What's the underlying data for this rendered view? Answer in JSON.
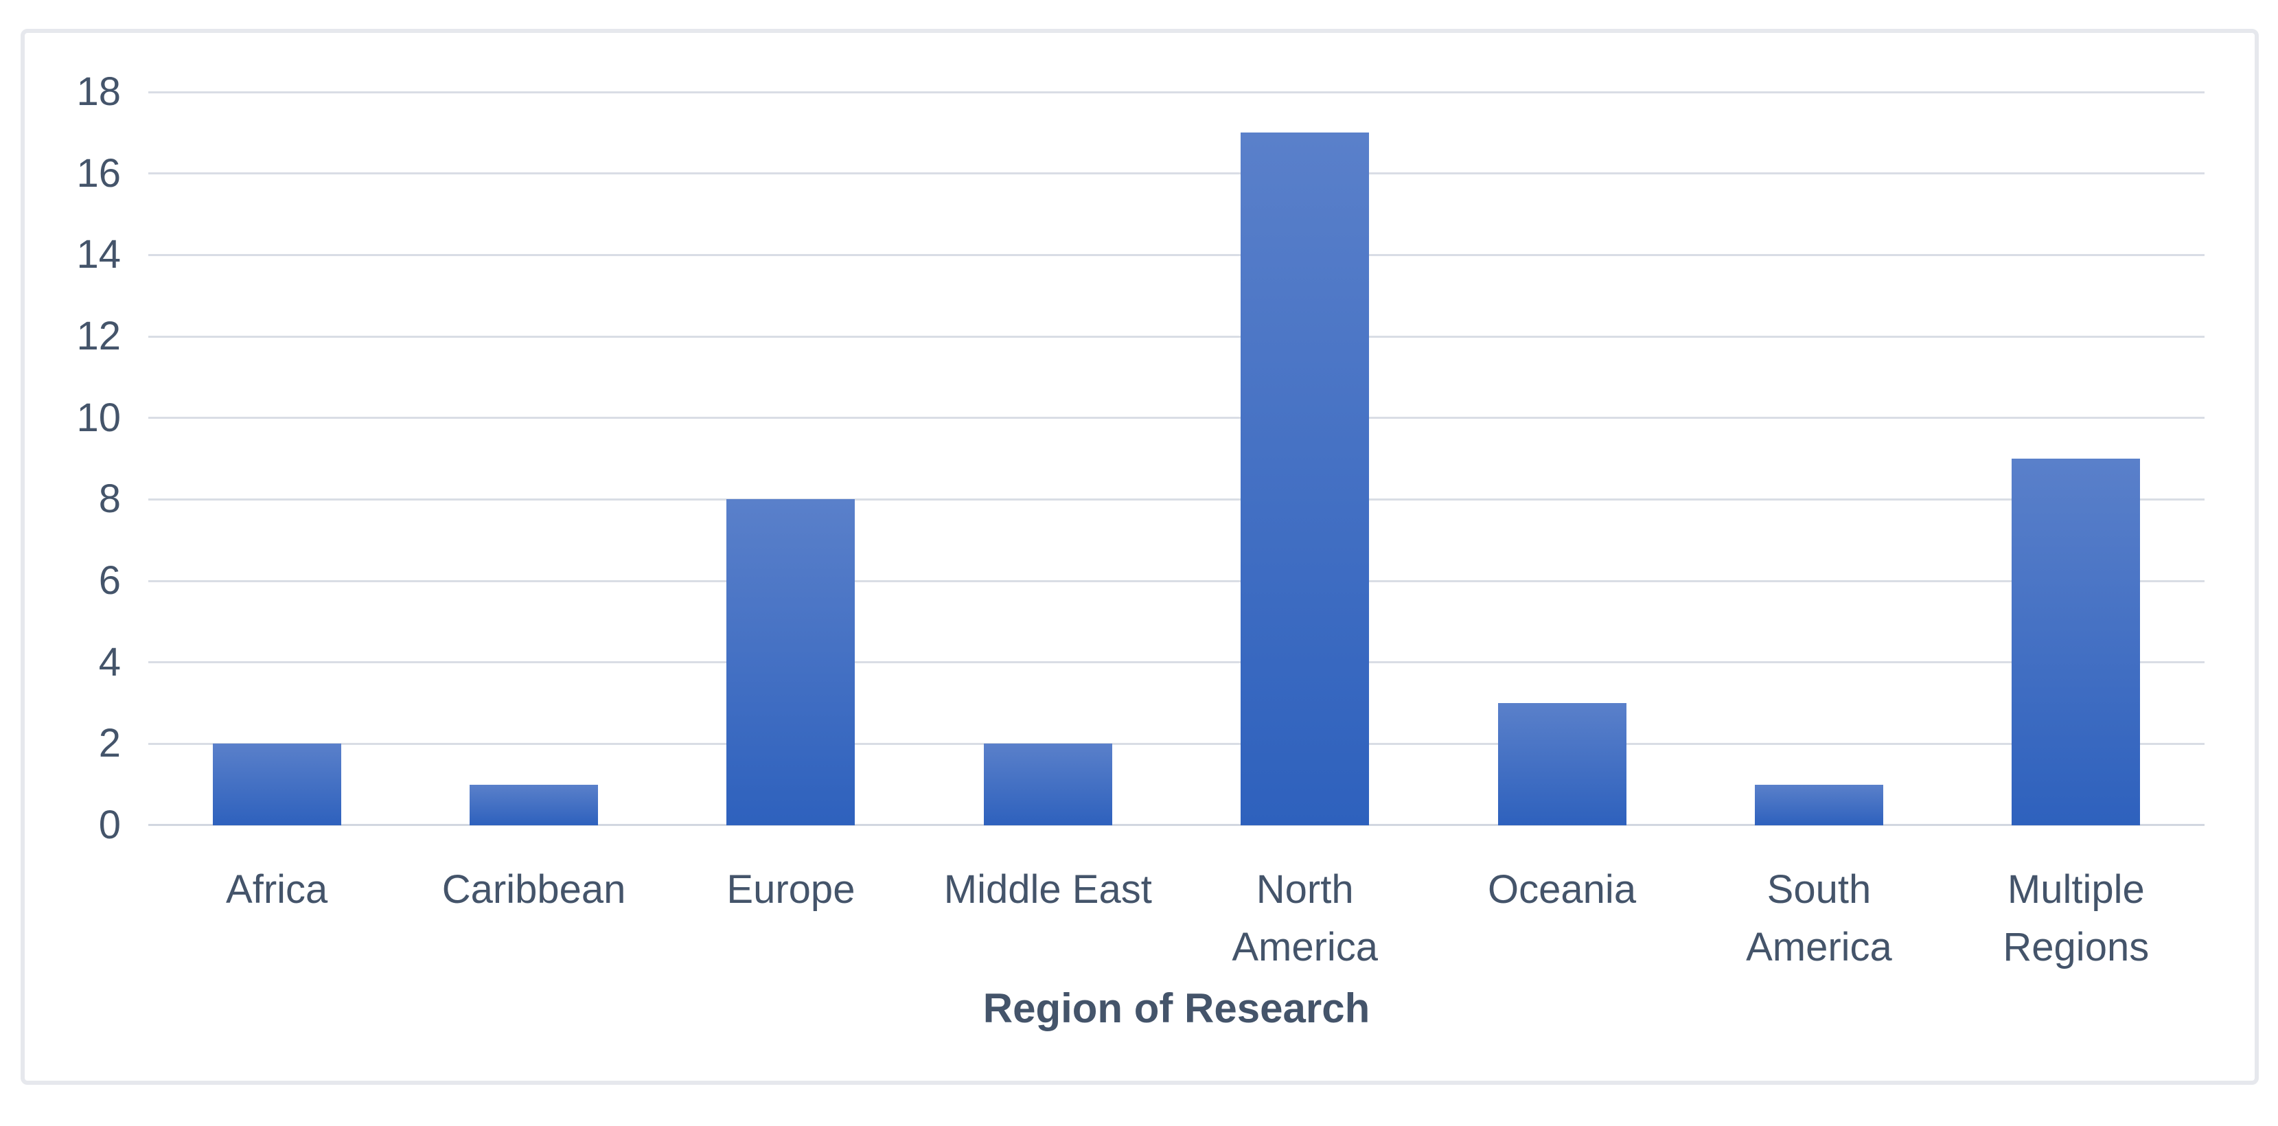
{
  "chart_data": {
    "type": "bar",
    "categories": [
      "Africa",
      "Caribbean",
      "Europe",
      "Middle East",
      "North America",
      "Oceania",
      "South America",
      "Multiple Regions"
    ],
    "values": [
      2,
      1,
      8,
      2,
      17,
      3,
      1,
      9
    ],
    "title": "",
    "xlabel": "Region of Research",
    "ylabel": "",
    "ylim": [
      0,
      18
    ],
    "ytick_step": 2,
    "ytick_labels": [
      "0",
      "2",
      "4",
      "6",
      "8",
      "10",
      "12",
      "14",
      "16",
      "18"
    ],
    "grid": "horizontal",
    "legend_position": "none",
    "bar_color_top": "#5a80ca",
    "bar_color_bottom": "#2e61bd",
    "gridline_color": "#d9dde5",
    "axis_line_color": "#d2d7e0",
    "label_color": "#44546a",
    "title_color": "#44546a",
    "frame_border_color": "#e6e8ed",
    "background_color": "#ffffff"
  }
}
